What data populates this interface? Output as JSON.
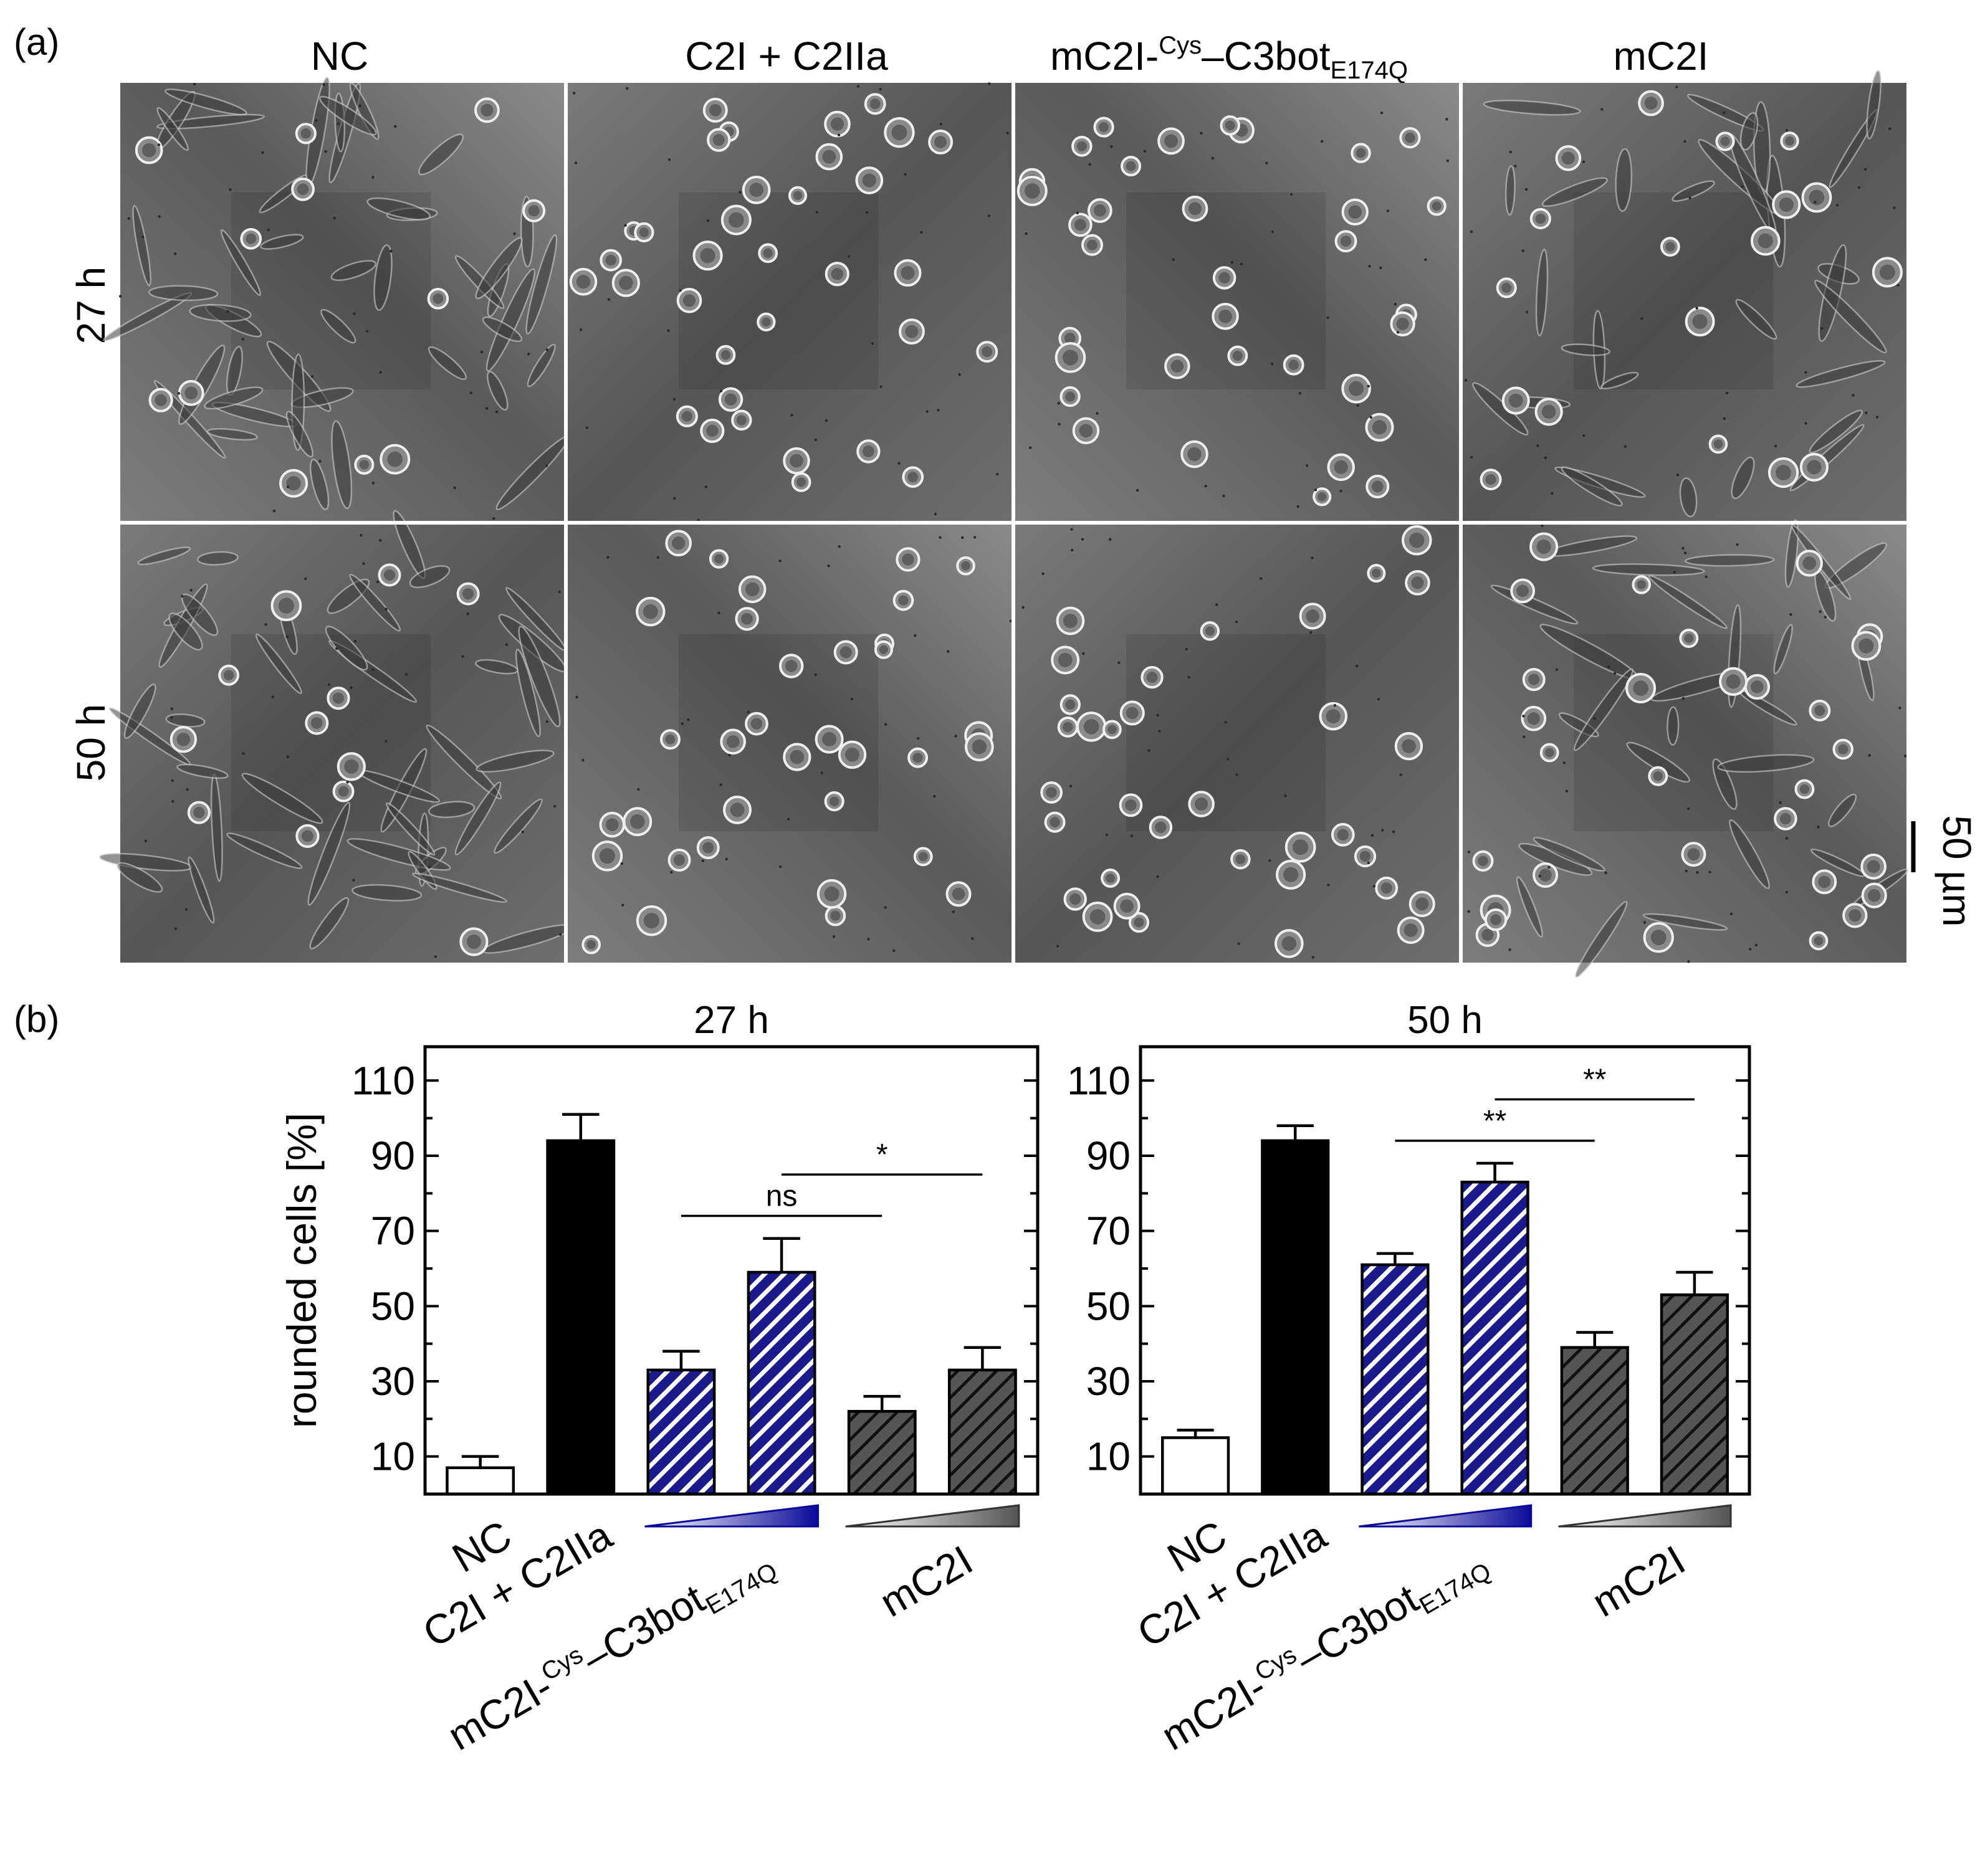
{
  "figure": {
    "panel_a_label": "(a)",
    "panel_b_label": "(b)",
    "columns": [
      {
        "main": "NC",
        "sup": "",
        "tail": "",
        "sub": ""
      },
      {
        "main": "C2I + C2IIa",
        "sup": "",
        "tail": "",
        "sub": ""
      },
      {
        "main": "mC2I-",
        "sup": "Cys",
        "tail": "–C3bot",
        "sub": "E174Q"
      },
      {
        "main": "mC2I",
        "sup": "",
        "tail": "",
        "sub": ""
      }
    ],
    "rows": [
      "27 h",
      "50 h"
    ],
    "scale_bar_label": "50 µm"
  },
  "colors": {
    "blue_hatch": "#1a1a8c",
    "gray_hatch": "#505050",
    "black": "#000000"
  },
  "group_labels": {
    "nc": "NC",
    "c2": "C2I + C2IIa",
    "mc_main": "mC2I-",
    "mc_sup": "Cys",
    "mc_tail": "–C3bot",
    "mc_sub": "E174Q",
    "mc2i": "mC2I"
  },
  "chart_data": [
    {
      "type": "bar",
      "title": "27 h",
      "ylabel": "rounded cells [%]",
      "ylim": [
        0,
        119
      ],
      "yticks": [
        10,
        30,
        50,
        70,
        90,
        110
      ],
      "values": [
        7,
        94,
        33,
        59,
        22,
        33
      ],
      "errors": [
        3,
        7,
        5,
        9,
        4,
        6
      ],
      "styles": [
        "white",
        "black",
        "blue-hatch",
        "blue-hatch",
        "gray-hatch",
        "gray-hatch"
      ],
      "significance": [
        {
          "from": 2,
          "to": 4,
          "label": "ns"
        },
        {
          "from": 3,
          "to": 5,
          "label": "*"
        }
      ]
    },
    {
      "type": "bar",
      "title": "50 h",
      "ylabel": "",
      "ylim": [
        0,
        119
      ],
      "yticks": [
        10,
        30,
        50,
        70,
        90,
        110
      ],
      "values": [
        15,
        94,
        61,
        83,
        39,
        53
      ],
      "errors": [
        2,
        4,
        3,
        5,
        4,
        6
      ],
      "styles": [
        "white",
        "black",
        "blue-hatch",
        "blue-hatch",
        "gray-hatch",
        "gray-hatch"
      ],
      "significance": [
        {
          "from": 2,
          "to": 4,
          "label": "**"
        },
        {
          "from": 3,
          "to": 5,
          "label": "**"
        }
      ]
    }
  ]
}
